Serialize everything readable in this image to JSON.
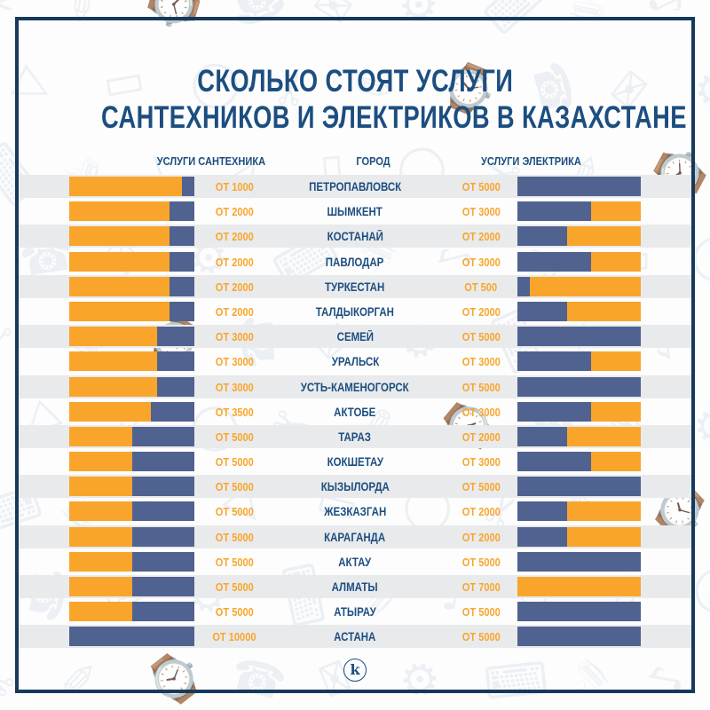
{
  "title": {
    "line1": "СКОЛЬКО СТОЯТ УСЛУГИ",
    "line2": "САНТЕХНИКОВ И ЭЛЕКТРИКОВ В КАЗАХСТАНЕ"
  },
  "columns": {
    "plumber": "УСЛУГИ САНТЕХНИКА",
    "city": "ГОРОД",
    "electrician": "УСЛУГИ ЭЛЕКТРИКА"
  },
  "footer": {
    "logo_letter": "k"
  },
  "colors": {
    "orange": "#F9A52B",
    "slate": "#50628F",
    "navy": "#1C4E80",
    "border": "#16395C",
    "stripe": "#E9EAEC",
    "dots": "#D5C9A6"
  },
  "background_pattern": {
    "description": "faint line-art doodles of tools and office objects",
    "glyphs": [
      "✂",
      "✎",
      "⌚",
      "☎",
      "✉",
      "⚙",
      "⌨",
      "☕",
      "♪",
      "△",
      "▭",
      "◯"
    ]
  },
  "rows": [
    {
      "city": "ПЕТРОПАВЛОВСК",
      "plumber_label": "ОТ 1000",
      "plumber_orange_pct": 90,
      "electrician_label": "ОТ 5000",
      "electrician_blue_pct": 100
    },
    {
      "city": "ШЫМКЕНТ",
      "plumber_label": "ОТ 2000",
      "plumber_orange_pct": 80,
      "electrician_label": "ОТ 3000",
      "electrician_blue_pct": 60
    },
    {
      "city": "КОСТАНАЙ",
      "plumber_label": "ОТ 2000",
      "plumber_orange_pct": 80,
      "electrician_label": "ОТ 2000",
      "electrician_blue_pct": 40
    },
    {
      "city": "ПАВЛОДАР",
      "plumber_label": "ОТ 2000",
      "plumber_orange_pct": 80,
      "electrician_label": "ОТ 3000",
      "electrician_blue_pct": 60
    },
    {
      "city": "ТУРКЕСТАН",
      "plumber_label": "ОТ 2000",
      "plumber_orange_pct": 80,
      "electrician_label": "ОТ 500",
      "electrician_blue_pct": 10
    },
    {
      "city": "ТАЛДЫКОРГАН",
      "plumber_label": "ОТ 2000",
      "plumber_orange_pct": 80,
      "electrician_label": "ОТ 2000",
      "electrician_blue_pct": 40
    },
    {
      "city": "СЕМЕЙ",
      "plumber_label": "ОТ 3000",
      "plumber_orange_pct": 70,
      "electrician_label": "ОТ 5000",
      "electrician_blue_pct": 100
    },
    {
      "city": "УРАЛЬСК",
      "plumber_label": "ОТ 3000",
      "plumber_orange_pct": 70,
      "electrician_label": "ОТ 3000",
      "electrician_blue_pct": 60
    },
    {
      "city": "УСТЬ-КАМЕНОГОРСК",
      "plumber_label": "ОТ 3000",
      "plumber_orange_pct": 70,
      "electrician_label": "ОТ 5000",
      "electrician_blue_pct": 100
    },
    {
      "city": "АКТОБЕ",
      "plumber_label": "ОТ 3500",
      "plumber_orange_pct": 65,
      "electrician_label": "ОТ 3000",
      "electrician_blue_pct": 60
    },
    {
      "city": "ТАРАЗ",
      "plumber_label": "ОТ 5000",
      "plumber_orange_pct": 50,
      "electrician_label": "ОТ 2000",
      "electrician_blue_pct": 40
    },
    {
      "city": "КОКШЕТАУ",
      "plumber_label": "ОТ 5000",
      "plumber_orange_pct": 50,
      "electrician_label": "ОТ 3000",
      "electrician_blue_pct": 60
    },
    {
      "city": "КЫЗЫЛОРДА",
      "plumber_label": "ОТ 5000",
      "plumber_orange_pct": 50,
      "electrician_label": "ОТ 5000",
      "electrician_blue_pct": 100
    },
    {
      "city": "ЖЕЗКАЗГАН",
      "plumber_label": "ОТ 5000",
      "plumber_orange_pct": 50,
      "electrician_label": "ОТ 2000",
      "electrician_blue_pct": 40
    },
    {
      "city": "КАРАГАНДА",
      "plumber_label": "ОТ 5000",
      "plumber_orange_pct": 50,
      "electrician_label": "ОТ 2000",
      "electrician_blue_pct": 40
    },
    {
      "city": "АКТАУ",
      "plumber_label": "ОТ 5000",
      "plumber_orange_pct": 50,
      "electrician_label": "ОТ 5000",
      "electrician_blue_pct": 100
    },
    {
      "city": "АЛМАТЫ",
      "plumber_label": "ОТ 5000",
      "plumber_orange_pct": 50,
      "electrician_label": "ОТ 7000",
      "electrician_blue_pct": 0
    },
    {
      "city": "АТЫРАУ",
      "plumber_label": "ОТ 5000",
      "plumber_orange_pct": 50,
      "electrician_label": "ОТ 5000",
      "electrician_blue_pct": 100
    },
    {
      "city": "АСТАНА",
      "plumber_label": "ОТ 10000",
      "plumber_orange_pct": 0,
      "electrician_label": "ОТ 5000",
      "electrician_blue_pct": 100
    }
  ],
  "chart_data": {
    "type": "bar",
    "title": "СКОЛЬКО СТОЯТ УСЛУГИ САНТЕХНИКОВ И ЭЛЕКТРИКОВ В КАЗАХСТАНЕ",
    "categories": [
      "ПЕТРОПАВЛОВСК",
      "ШЫМКЕНТ",
      "КОСТАНАЙ",
      "ПАВЛОДАР",
      "ТУРКЕСТАН",
      "ТАЛДЫКОРГАН",
      "СЕМЕЙ",
      "УРАЛЬСК",
      "УСТЬ-КАМЕНОГОРСК",
      "АКТОБЕ",
      "ТАРАЗ",
      "КОКШЕТАУ",
      "КЫЗЫЛОРДА",
      "ЖЕЗКАЗГАН",
      "КАРАГАНДА",
      "АКТАУ",
      "АЛМАТЫ",
      "АТЫРАУ",
      "АСТАНА"
    ],
    "series": [
      {
        "name": "УСЛУГИ САНТЕХНИКА",
        "values": [
          1000,
          2000,
          2000,
          2000,
          2000,
          2000,
          3000,
          3000,
          3000,
          3500,
          5000,
          5000,
          5000,
          5000,
          5000,
          5000,
          5000,
          5000,
          10000
        ],
        "value_prefix": "ОТ"
      },
      {
        "name": "УСЛУГИ ЭЛЕКТРИКА",
        "values": [
          5000,
          3000,
          2000,
          3000,
          500,
          2000,
          5000,
          3000,
          5000,
          3000,
          2000,
          3000,
          5000,
          2000,
          2000,
          5000,
          7000,
          5000,
          5000
        ],
        "value_prefix": "ОТ"
      }
    ],
    "layout": "paired horizontal bars around central city column, left bar orange-fill = 1 - value/10000, right bar blue-fill = value/5000, values shown as data labels"
  }
}
